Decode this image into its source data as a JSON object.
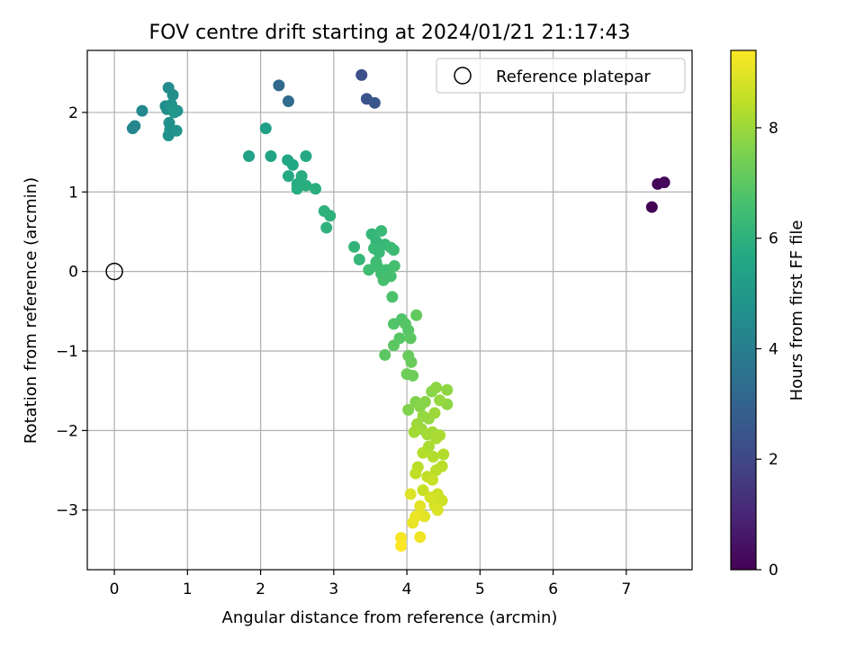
{
  "chart_data": {
    "type": "scatter",
    "title": "FOV centre drift starting at 2024/01/21 21:17:43",
    "xlabel": "Angular distance from reference (arcmin)",
    "ylabel": "Rotation from reference (arcmin)",
    "xlim": [
      -0.37,
      7.9
    ],
    "ylim": [
      -3.75,
      2.78
    ],
    "x_ticks": [
      0,
      1,
      2,
      3,
      4,
      5,
      6,
      7
    ],
    "y_ticks": [
      -3,
      -2,
      -1,
      0,
      1,
      2
    ],
    "grid": true,
    "legend": {
      "placement": "top-right",
      "entries": [
        "Reference platepar"
      ]
    },
    "reference_point": {
      "x": 0,
      "y": 0,
      "marker": "open-circle"
    },
    "colorbar": {
      "label": "Hours from first FF file",
      "colormap": "viridis",
      "range": [
        0,
        9.4
      ],
      "ticks": [
        0,
        2,
        4,
        6,
        8
      ]
    },
    "series": [
      {
        "points": [
          {
            "x": 7.35,
            "y": 0.81,
            "c": 0.0
          },
          {
            "x": 7.43,
            "y": 1.1,
            "c": 0.1
          },
          {
            "x": 7.52,
            "y": 1.12,
            "c": 0.2
          },
          {
            "x": 3.38,
            "y": 2.47,
            "c": 2.3
          },
          {
            "x": 3.45,
            "y": 2.17,
            "c": 2.4
          },
          {
            "x": 3.56,
            "y": 2.12,
            "c": 2.5
          },
          {
            "x": 2.25,
            "y": 2.34,
            "c": 3.2
          },
          {
            "x": 2.38,
            "y": 2.14,
            "c": 3.3
          },
          {
            "x": 0.25,
            "y": 1.8,
            "c": 4.3
          },
          {
            "x": 0.28,
            "y": 1.83,
            "c": 4.3
          },
          {
            "x": 0.38,
            "y": 2.02,
            "c": 4.4
          },
          {
            "x": 0.7,
            "y": 2.08,
            "c": 4.5
          },
          {
            "x": 0.74,
            "y": 2.31,
            "c": 4.5
          },
          {
            "x": 0.8,
            "y": 2.22,
            "c": 4.6
          },
          {
            "x": 0.72,
            "y": 2.04,
            "c": 4.6
          },
          {
            "x": 0.75,
            "y": 1.87,
            "c": 4.7
          },
          {
            "x": 0.74,
            "y": 1.71,
            "c": 4.7
          },
          {
            "x": 0.76,
            "y": 1.78,
            "c": 4.7
          },
          {
            "x": 0.85,
            "y": 1.77,
            "c": 4.8
          },
          {
            "x": 0.86,
            "y": 2.02,
            "c": 4.8
          },
          {
            "x": 0.78,
            "y": 2.1,
            "c": 4.8
          },
          {
            "x": 0.82,
            "y": 2.0,
            "c": 4.9
          },
          {
            "x": 2.07,
            "y": 1.8,
            "c": 5.3
          },
          {
            "x": 1.84,
            "y": 1.45,
            "c": 5.4
          },
          {
            "x": 2.14,
            "y": 1.45,
            "c": 5.5
          },
          {
            "x": 2.37,
            "y": 1.4,
            "c": 5.6
          },
          {
            "x": 2.44,
            "y": 1.34,
            "c": 5.6
          },
          {
            "x": 2.62,
            "y": 1.45,
            "c": 5.7
          },
          {
            "x": 2.38,
            "y": 1.2,
            "c": 5.7
          },
          {
            "x": 2.56,
            "y": 1.2,
            "c": 5.8
          },
          {
            "x": 2.5,
            "y": 1.1,
            "c": 5.8
          },
          {
            "x": 2.5,
            "y": 1.04,
            "c": 5.8
          },
          {
            "x": 2.62,
            "y": 1.08,
            "c": 5.9
          },
          {
            "x": 2.75,
            "y": 1.04,
            "c": 5.9
          },
          {
            "x": 2.87,
            "y": 0.76,
            "c": 6.0
          },
          {
            "x": 2.95,
            "y": 0.7,
            "c": 6.0
          },
          {
            "x": 2.9,
            "y": 0.55,
            "c": 6.0
          },
          {
            "x": 3.28,
            "y": 0.31,
            "c": 6.1
          },
          {
            "x": 3.35,
            "y": 0.15,
            "c": 6.2
          },
          {
            "x": 3.52,
            "y": 0.47,
            "c": 6.2
          },
          {
            "x": 3.58,
            "y": 0.38,
            "c": 6.2
          },
          {
            "x": 3.65,
            "y": 0.51,
            "c": 6.3
          },
          {
            "x": 3.55,
            "y": 0.29,
            "c": 6.3
          },
          {
            "x": 3.62,
            "y": 0.24,
            "c": 6.3
          },
          {
            "x": 3.7,
            "y": 0.34,
            "c": 6.3
          },
          {
            "x": 3.78,
            "y": 0.3,
            "c": 6.4
          },
          {
            "x": 3.82,
            "y": 0.27,
            "c": 6.4
          },
          {
            "x": 3.58,
            "y": 0.12,
            "c": 6.4
          },
          {
            "x": 3.48,
            "y": 0.02,
            "c": 6.5
          },
          {
            "x": 3.6,
            "y": 0.06,
            "c": 6.5
          },
          {
            "x": 3.65,
            "y": -0.03,
            "c": 6.5
          },
          {
            "x": 3.72,
            "y": 0.02,
            "c": 6.5
          },
          {
            "x": 3.78,
            "y": -0.06,
            "c": 6.6
          },
          {
            "x": 3.83,
            "y": 0.07,
            "c": 6.6
          },
          {
            "x": 3.68,
            "y": -0.11,
            "c": 6.6
          },
          {
            "x": 3.8,
            "y": -0.32,
            "c": 6.7
          },
          {
            "x": 3.82,
            "y": -0.66,
            "c": 6.8
          },
          {
            "x": 3.93,
            "y": -0.6,
            "c": 6.8
          },
          {
            "x": 3.98,
            "y": -0.66,
            "c": 6.9
          },
          {
            "x": 4.02,
            "y": -0.74,
            "c": 6.9
          },
          {
            "x": 3.9,
            "y": -0.84,
            "c": 6.9
          },
          {
            "x": 3.82,
            "y": -0.93,
            "c": 7.0
          },
          {
            "x": 3.7,
            "y": -1.05,
            "c": 7.0
          },
          {
            "x": 4.05,
            "y": -0.84,
            "c": 7.0
          },
          {
            "x": 4.13,
            "y": -0.55,
            "c": 7.1
          },
          {
            "x": 4.02,
            "y": -1.06,
            "c": 7.2
          },
          {
            "x": 4.06,
            "y": -1.14,
            "c": 7.2
          },
          {
            "x": 4.0,
            "y": -1.29,
            "c": 7.3
          },
          {
            "x": 4.08,
            "y": -1.31,
            "c": 7.3
          },
          {
            "x": 4.02,
            "y": -1.74,
            "c": 7.6
          },
          {
            "x": 4.12,
            "y": -1.64,
            "c": 7.6
          },
          {
            "x": 4.18,
            "y": -1.7,
            "c": 7.7
          },
          {
            "x": 4.25,
            "y": -1.64,
            "c": 7.7
          },
          {
            "x": 4.34,
            "y": -1.51,
            "c": 7.7
          },
          {
            "x": 4.4,
            "y": -1.46,
            "c": 7.8
          },
          {
            "x": 4.55,
            "y": -1.49,
            "c": 7.8
          },
          {
            "x": 4.55,
            "y": -1.67,
            "c": 7.8
          },
          {
            "x": 4.45,
            "y": -1.62,
            "c": 7.9
          },
          {
            "x": 4.22,
            "y": -1.82,
            "c": 7.9
          },
          {
            "x": 4.3,
            "y": -1.85,
            "c": 7.9
          },
          {
            "x": 4.38,
            "y": -1.78,
            "c": 8.0
          },
          {
            "x": 4.14,
            "y": -1.92,
            "c": 8.0
          },
          {
            "x": 4.2,
            "y": -1.98,
            "c": 8.0
          },
          {
            "x": 4.1,
            "y": -2.02,
            "c": 8.1
          },
          {
            "x": 4.28,
            "y": -2.05,
            "c": 8.1
          },
          {
            "x": 4.35,
            "y": -2.02,
            "c": 8.1
          },
          {
            "x": 4.4,
            "y": -2.1,
            "c": 8.2
          },
          {
            "x": 4.45,
            "y": -2.06,
            "c": 8.2
          },
          {
            "x": 4.3,
            "y": -2.2,
            "c": 8.2
          },
          {
            "x": 4.22,
            "y": -2.28,
            "c": 8.3
          },
          {
            "x": 4.36,
            "y": -2.33,
            "c": 8.3
          },
          {
            "x": 4.5,
            "y": -2.3,
            "c": 8.3
          },
          {
            "x": 4.48,
            "y": -2.45,
            "c": 8.4
          },
          {
            "x": 4.4,
            "y": -2.5,
            "c": 8.4
          },
          {
            "x": 4.15,
            "y": -2.46,
            "c": 8.4
          },
          {
            "x": 4.12,
            "y": -2.54,
            "c": 8.5
          },
          {
            "x": 4.28,
            "y": -2.58,
            "c": 8.5
          },
          {
            "x": 4.35,
            "y": -2.62,
            "c": 8.6
          },
          {
            "x": 4.22,
            "y": -2.75,
            "c": 8.6
          },
          {
            "x": 4.42,
            "y": -2.8,
            "c": 8.7
          },
          {
            "x": 4.48,
            "y": -2.88,
            "c": 8.7
          },
          {
            "x": 4.32,
            "y": -2.84,
            "c": 8.8
          },
          {
            "x": 4.38,
            "y": -2.94,
            "c": 8.8
          },
          {
            "x": 4.42,
            "y": -3.0,
            "c": 8.9
          },
          {
            "x": 4.05,
            "y": -2.8,
            "c": 8.9
          },
          {
            "x": 4.18,
            "y": -2.95,
            "c": 9.0
          },
          {
            "x": 4.24,
            "y": -3.08,
            "c": 9.0
          },
          {
            "x": 4.12,
            "y": -3.08,
            "c": 9.1
          },
          {
            "x": 4.08,
            "y": -3.16,
            "c": 9.1
          },
          {
            "x": 4.18,
            "y": -3.34,
            "c": 9.2
          },
          {
            "x": 3.92,
            "y": -3.35,
            "c": 9.3
          },
          {
            "x": 3.92,
            "y": -3.45,
            "c": 9.4
          }
        ]
      }
    ]
  }
}
